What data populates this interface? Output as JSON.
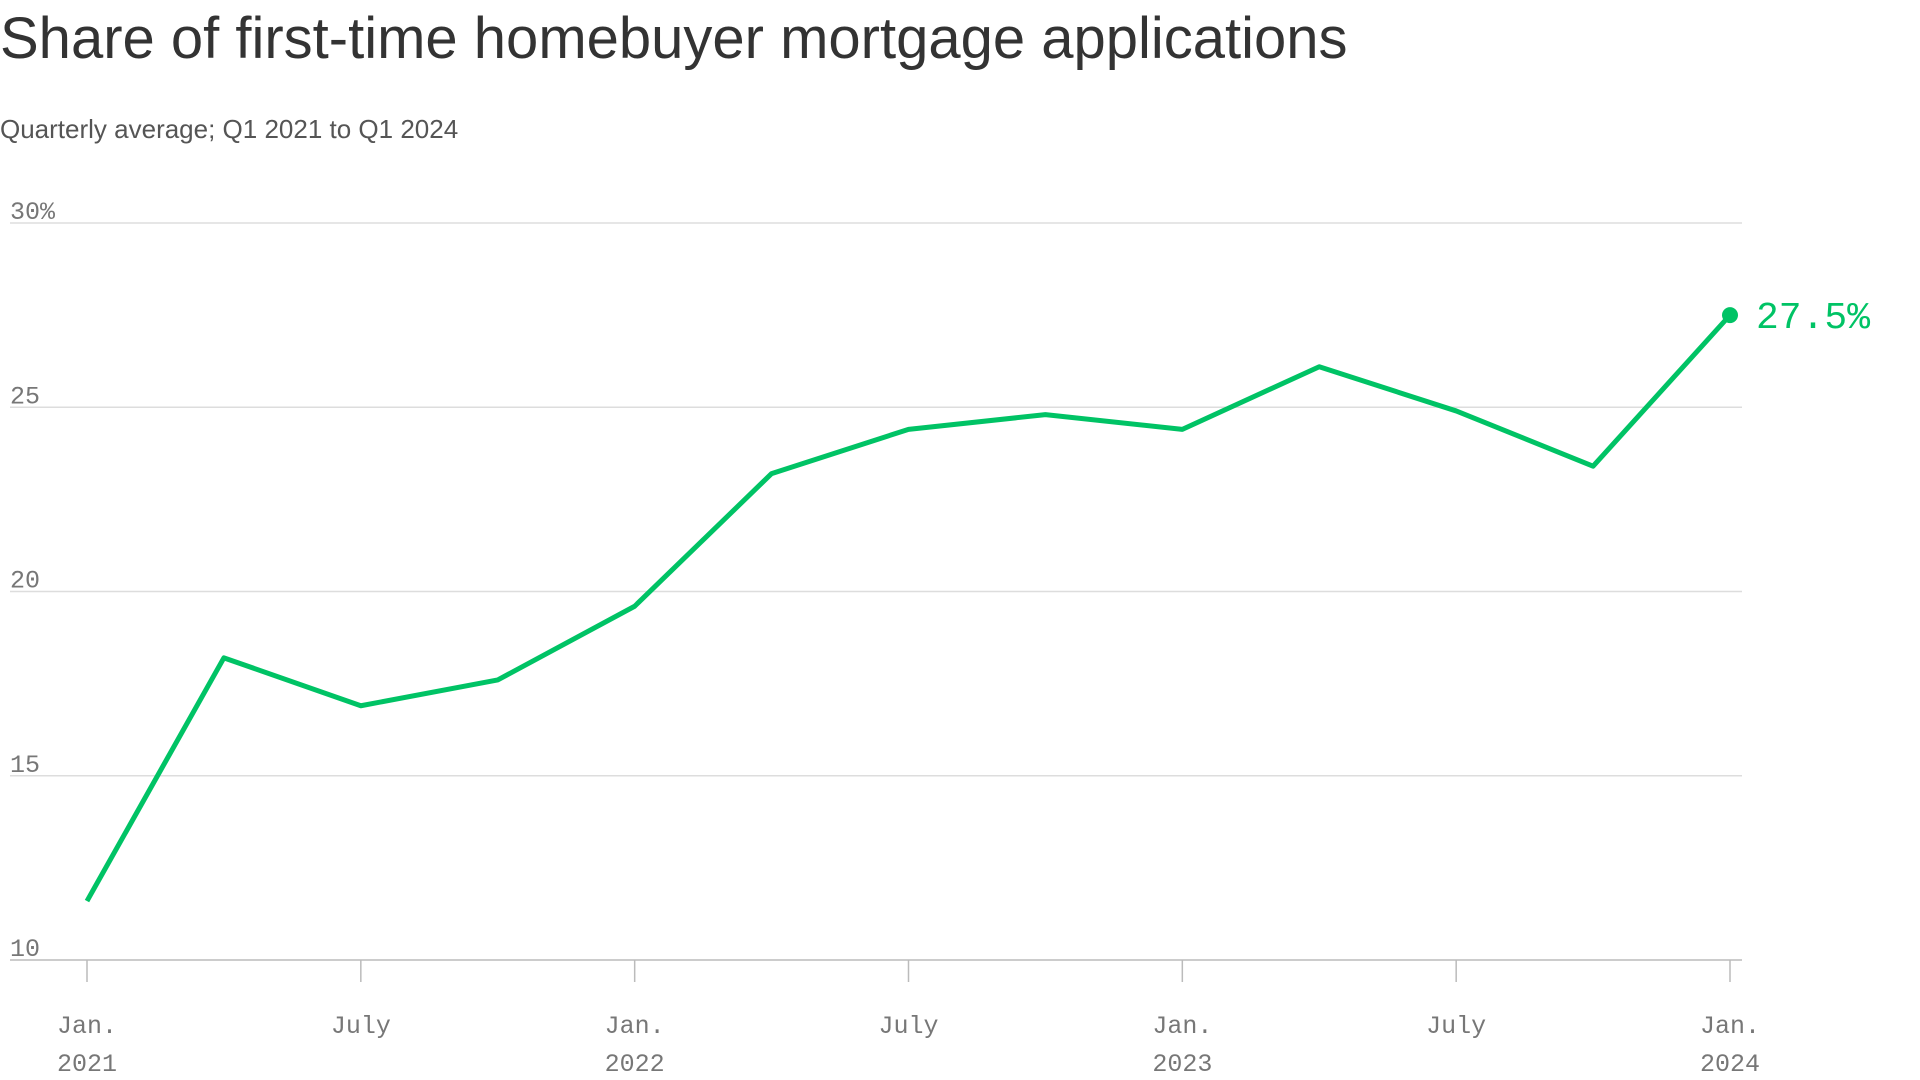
{
  "chart_data": {
    "type": "line",
    "title": "Share of first-time homebuyer mortgage applications",
    "subtitle": "Quarterly average; Q1 2021 to Q1 2024",
    "x": [
      "2021-01",
      "2021-04",
      "2021-07",
      "2021-10",
      "2022-01",
      "2022-04",
      "2022-07",
      "2022-10",
      "2023-01",
      "2023-04",
      "2023-07",
      "2023-10",
      "2024-01"
    ],
    "series": [
      {
        "color": "#00c365",
        "values": [
          11.6,
          18.2,
          16.9,
          17.6,
          19.6,
          23.2,
          24.4,
          24.8,
          24.4,
          26.1,
          24.9,
          23.4,
          27.5
        ],
        "value_labels": [
          null,
          null,
          null,
          null,
          null,
          null,
          null,
          null,
          null,
          null,
          null,
          null,
          "27.5%"
        ]
      }
    ],
    "xlim": [
      "2021-01",
      "2024-01"
    ],
    "xticks": [
      {
        "value": "2021-01",
        "label": [
          "Jan.",
          "2021"
        ]
      },
      {
        "value": "2021-07",
        "label": [
          "July"
        ]
      },
      {
        "value": "2022-01",
        "label": [
          "Jan.",
          "2022"
        ]
      },
      {
        "value": "2022-07",
        "label": [
          "July"
        ]
      },
      {
        "value": "2023-01",
        "label": [
          "Jan.",
          "2023"
        ]
      },
      {
        "value": "2023-07",
        "label": [
          "July"
        ]
      },
      {
        "value": "2024-01",
        "label": [
          "Jan.",
          "2024"
        ]
      }
    ],
    "ylim": [
      10,
      30
    ],
    "yticks": [
      10,
      15,
      20,
      25,
      {
        "value": 30,
        "label": "30%"
      }
    ],
    "grid": true
  }
}
